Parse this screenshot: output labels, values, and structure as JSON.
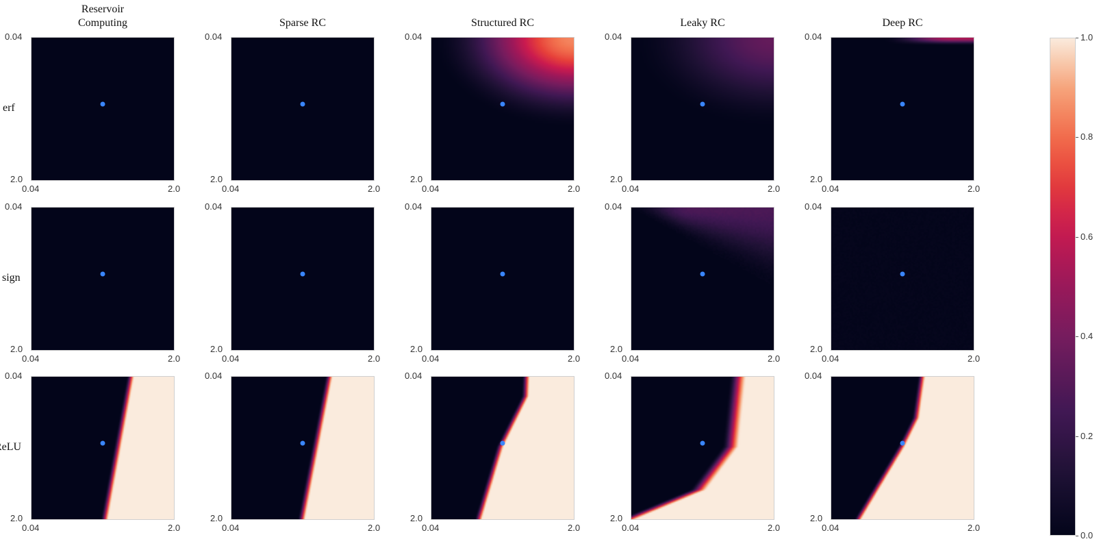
{
  "chart_data": {
    "type": "heatmap",
    "columns": [
      "Reservoir Computing",
      "Sparse RC",
      "Structured RC",
      "Leaky RC",
      "Deep RC"
    ],
    "column_titles": [
      "Reservoir\nComputing",
      "Sparse RC",
      "Structured RC",
      "Leaky RC",
      "Deep RC"
    ],
    "rows": [
      "erf",
      "sign",
      "ReLU"
    ],
    "x_range": [
      0.04,
      2.0
    ],
    "y_range": [
      0.04,
      2.0
    ],
    "x_tick_labels": [
      "0.04",
      "2.0"
    ],
    "y_tick_labels": [
      "0.04",
      "2.0"
    ],
    "marker": {
      "x": 1.0,
      "y": 1.0,
      "color": "#3a86ff"
    },
    "colorbar": {
      "range": [
        0.0,
        1.0
      ],
      "ticks": [
        "0.0",
        "0.2",
        "0.4",
        "0.6",
        "0.8",
        "1.0"
      ]
    },
    "colormap": "rocket",
    "grid": false,
    "panels": [
      {
        "row": "erf",
        "column": "Reservoir Computing",
        "pattern": "zero"
      },
      {
        "row": "erf",
        "column": "Sparse RC",
        "pattern": "zero"
      },
      {
        "row": "erf",
        "column": "Structured RC",
        "pattern": "top-right-corner",
        "max": 0.85
      },
      {
        "row": "erf",
        "column": "Leaky RC",
        "pattern": "top-right-corner",
        "max": 0.35
      },
      {
        "row": "erf",
        "column": "Deep RC",
        "pattern": "top-edge",
        "max": 0.55
      },
      {
        "row": "sign",
        "column": "Reservoir Computing",
        "pattern": "zero"
      },
      {
        "row": "sign",
        "column": "Sparse RC",
        "pattern": "zero"
      },
      {
        "row": "sign",
        "column": "Structured RC",
        "pattern": "zero"
      },
      {
        "row": "sign",
        "column": "Leaky RC",
        "pattern": "top-wedge",
        "max": 0.3
      },
      {
        "row": "sign",
        "column": "Deep RC",
        "pattern": "noise",
        "max": 0.05
      },
      {
        "row": "ReLU",
        "column": "Reservoir Computing",
        "pattern": "boundary",
        "boundary": [
          [
            0.04,
            1.42
          ],
          [
            2.0,
            1.06
          ]
        ]
      },
      {
        "row": "ReLU",
        "column": "Sparse RC",
        "pattern": "boundary",
        "boundary": [
          [
            0.04,
            1.4
          ],
          [
            2.0,
            1.02
          ]
        ]
      },
      {
        "row": "ReLU",
        "column": "Structured RC",
        "pattern": "boundary",
        "boundary": [
          [
            0.04,
            1.36
          ],
          [
            0.3,
            1.35
          ],
          [
            1.0,
            1.0
          ],
          [
            2.0,
            0.7
          ]
        ]
      },
      {
        "row": "ReLU",
        "column": "Leaky RC",
        "pattern": "curved",
        "boundary": [
          [
            0.04,
            1.55
          ],
          [
            1.0,
            1.45
          ],
          [
            1.6,
            1.0
          ],
          [
            2.0,
            0.04
          ]
        ]
      },
      {
        "row": "ReLU",
        "column": "Deep RC",
        "pattern": "boundary",
        "boundary": [
          [
            0.04,
            1.3
          ],
          [
            0.6,
            1.22
          ],
          [
            1.0,
            1.02
          ],
          [
            2.0,
            0.42
          ]
        ]
      }
    ]
  }
}
